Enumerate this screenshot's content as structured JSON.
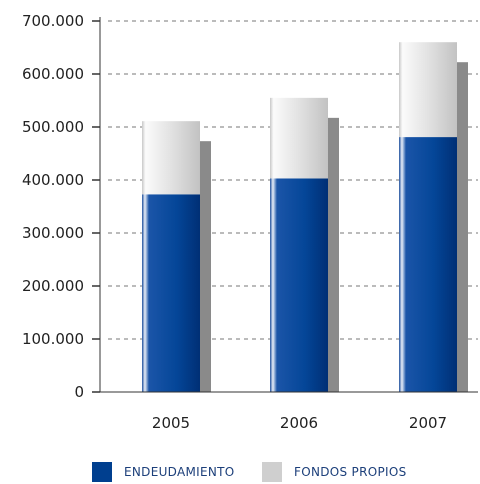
{
  "chart_data": {
    "type": "bar",
    "stacked": true,
    "categories": [
      "2005",
      "2006",
      "2007"
    ],
    "series": [
      {
        "name": "ENDEUDAMIENTO",
        "values": [
          373000,
          403000,
          481000
        ],
        "color": "#003f8f"
      },
      {
        "name": "FONDOS PROPIOS",
        "values": [
          138000,
          152000,
          179000
        ],
        "color": "#d6d6d6"
      }
    ],
    "shadow_color": "#8a8a8a",
    "yticks": [
      "0",
      "100.000",
      "200.000",
      "300.000",
      "400.000",
      "500.000",
      "600.000",
      "700.000"
    ],
    "ylim": [
      0,
      700000
    ],
    "grid": true,
    "legend_position": "bottom"
  }
}
